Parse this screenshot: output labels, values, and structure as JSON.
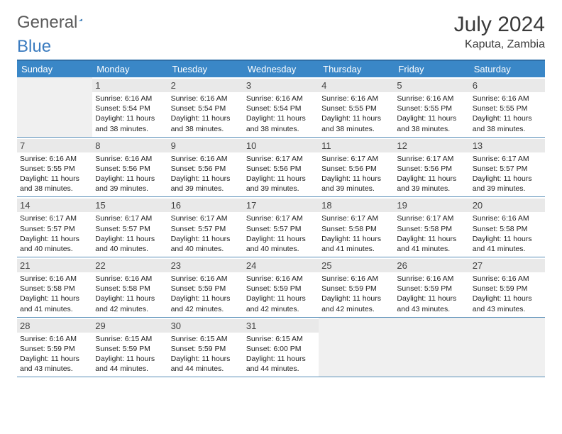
{
  "brand": {
    "general": "General",
    "blue": "Blue"
  },
  "title": "July 2024",
  "location": "Kaputa, Zambia",
  "colors": {
    "header_bg": "#3a87c7",
    "border": "#2e6fa8",
    "row_sep": "#5a8fb8",
    "daynum_bg": "#e9e9e9",
    "blank_bg": "#f0f0f0",
    "text": "#222222",
    "logo_gray": "#5a5a5a",
    "logo_blue": "#3a7bbf"
  },
  "weekdays": [
    "Sunday",
    "Monday",
    "Tuesday",
    "Wednesday",
    "Thursday",
    "Friday",
    "Saturday"
  ],
  "weeks": [
    [
      null,
      {
        "n": "1",
        "sr": "Sunrise: 6:16 AM",
        "ss": "Sunset: 5:54 PM",
        "d1": "Daylight: 11 hours",
        "d2": "and 38 minutes."
      },
      {
        "n": "2",
        "sr": "Sunrise: 6:16 AM",
        "ss": "Sunset: 5:54 PM",
        "d1": "Daylight: 11 hours",
        "d2": "and 38 minutes."
      },
      {
        "n": "3",
        "sr": "Sunrise: 6:16 AM",
        "ss": "Sunset: 5:54 PM",
        "d1": "Daylight: 11 hours",
        "d2": "and 38 minutes."
      },
      {
        "n": "4",
        "sr": "Sunrise: 6:16 AM",
        "ss": "Sunset: 5:55 PM",
        "d1": "Daylight: 11 hours",
        "d2": "and 38 minutes."
      },
      {
        "n": "5",
        "sr": "Sunrise: 6:16 AM",
        "ss": "Sunset: 5:55 PM",
        "d1": "Daylight: 11 hours",
        "d2": "and 38 minutes."
      },
      {
        "n": "6",
        "sr": "Sunrise: 6:16 AM",
        "ss": "Sunset: 5:55 PM",
        "d1": "Daylight: 11 hours",
        "d2": "and 38 minutes."
      }
    ],
    [
      {
        "n": "7",
        "sr": "Sunrise: 6:16 AM",
        "ss": "Sunset: 5:55 PM",
        "d1": "Daylight: 11 hours",
        "d2": "and 38 minutes."
      },
      {
        "n": "8",
        "sr": "Sunrise: 6:16 AM",
        "ss": "Sunset: 5:56 PM",
        "d1": "Daylight: 11 hours",
        "d2": "and 39 minutes."
      },
      {
        "n": "9",
        "sr": "Sunrise: 6:16 AM",
        "ss": "Sunset: 5:56 PM",
        "d1": "Daylight: 11 hours",
        "d2": "and 39 minutes."
      },
      {
        "n": "10",
        "sr": "Sunrise: 6:17 AM",
        "ss": "Sunset: 5:56 PM",
        "d1": "Daylight: 11 hours",
        "d2": "and 39 minutes."
      },
      {
        "n": "11",
        "sr": "Sunrise: 6:17 AM",
        "ss": "Sunset: 5:56 PM",
        "d1": "Daylight: 11 hours",
        "d2": "and 39 minutes."
      },
      {
        "n": "12",
        "sr": "Sunrise: 6:17 AM",
        "ss": "Sunset: 5:56 PM",
        "d1": "Daylight: 11 hours",
        "d2": "and 39 minutes."
      },
      {
        "n": "13",
        "sr": "Sunrise: 6:17 AM",
        "ss": "Sunset: 5:57 PM",
        "d1": "Daylight: 11 hours",
        "d2": "and 39 minutes."
      }
    ],
    [
      {
        "n": "14",
        "sr": "Sunrise: 6:17 AM",
        "ss": "Sunset: 5:57 PM",
        "d1": "Daylight: 11 hours",
        "d2": "and 40 minutes."
      },
      {
        "n": "15",
        "sr": "Sunrise: 6:17 AM",
        "ss": "Sunset: 5:57 PM",
        "d1": "Daylight: 11 hours",
        "d2": "and 40 minutes."
      },
      {
        "n": "16",
        "sr": "Sunrise: 6:17 AM",
        "ss": "Sunset: 5:57 PM",
        "d1": "Daylight: 11 hours",
        "d2": "and 40 minutes."
      },
      {
        "n": "17",
        "sr": "Sunrise: 6:17 AM",
        "ss": "Sunset: 5:57 PM",
        "d1": "Daylight: 11 hours",
        "d2": "and 40 minutes."
      },
      {
        "n": "18",
        "sr": "Sunrise: 6:17 AM",
        "ss": "Sunset: 5:58 PM",
        "d1": "Daylight: 11 hours",
        "d2": "and 41 minutes."
      },
      {
        "n": "19",
        "sr": "Sunrise: 6:17 AM",
        "ss": "Sunset: 5:58 PM",
        "d1": "Daylight: 11 hours",
        "d2": "and 41 minutes."
      },
      {
        "n": "20",
        "sr": "Sunrise: 6:16 AM",
        "ss": "Sunset: 5:58 PM",
        "d1": "Daylight: 11 hours",
        "d2": "and 41 minutes."
      }
    ],
    [
      {
        "n": "21",
        "sr": "Sunrise: 6:16 AM",
        "ss": "Sunset: 5:58 PM",
        "d1": "Daylight: 11 hours",
        "d2": "and 41 minutes."
      },
      {
        "n": "22",
        "sr": "Sunrise: 6:16 AM",
        "ss": "Sunset: 5:58 PM",
        "d1": "Daylight: 11 hours",
        "d2": "and 42 minutes."
      },
      {
        "n": "23",
        "sr": "Sunrise: 6:16 AM",
        "ss": "Sunset: 5:59 PM",
        "d1": "Daylight: 11 hours",
        "d2": "and 42 minutes."
      },
      {
        "n": "24",
        "sr": "Sunrise: 6:16 AM",
        "ss": "Sunset: 5:59 PM",
        "d1": "Daylight: 11 hours",
        "d2": "and 42 minutes."
      },
      {
        "n": "25",
        "sr": "Sunrise: 6:16 AM",
        "ss": "Sunset: 5:59 PM",
        "d1": "Daylight: 11 hours",
        "d2": "and 42 minutes."
      },
      {
        "n": "26",
        "sr": "Sunrise: 6:16 AM",
        "ss": "Sunset: 5:59 PM",
        "d1": "Daylight: 11 hours",
        "d2": "and 43 minutes."
      },
      {
        "n": "27",
        "sr": "Sunrise: 6:16 AM",
        "ss": "Sunset: 5:59 PM",
        "d1": "Daylight: 11 hours",
        "d2": "and 43 minutes."
      }
    ],
    [
      {
        "n": "28",
        "sr": "Sunrise: 6:16 AM",
        "ss": "Sunset: 5:59 PM",
        "d1": "Daylight: 11 hours",
        "d2": "and 43 minutes."
      },
      {
        "n": "29",
        "sr": "Sunrise: 6:15 AM",
        "ss": "Sunset: 5:59 PM",
        "d1": "Daylight: 11 hours",
        "d2": "and 44 minutes."
      },
      {
        "n": "30",
        "sr": "Sunrise: 6:15 AM",
        "ss": "Sunset: 5:59 PM",
        "d1": "Daylight: 11 hours",
        "d2": "and 44 minutes."
      },
      {
        "n": "31",
        "sr": "Sunrise: 6:15 AM",
        "ss": "Sunset: 6:00 PM",
        "d1": "Daylight: 11 hours",
        "d2": "and 44 minutes."
      },
      null,
      null,
      null
    ]
  ]
}
